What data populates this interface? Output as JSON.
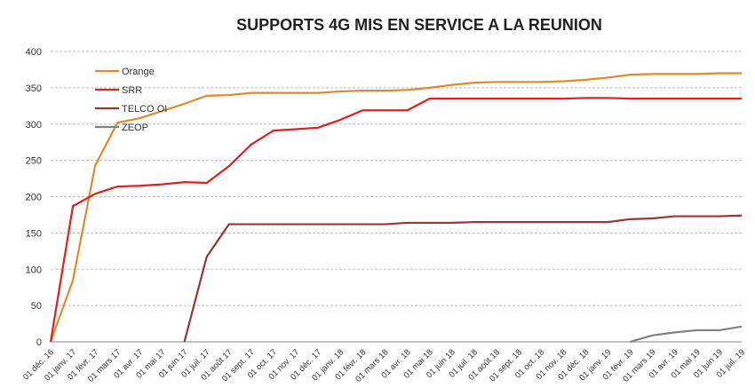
{
  "chart_data": {
    "type": "line",
    "title": "SUPPORTS 4G MIS EN SERVICE  A LA REUNION",
    "categories": [
      "01 déc. 16",
      "01 janv. 17",
      "01 févr. 17",
      "01 mars 17",
      "01 avr. 17",
      "01 mai 17",
      "01 juin 17",
      "01 juil. 17",
      "01 août 17",
      "01 sept. 17",
      "01 oct. 17",
      "01 nov. 17",
      "01 déc. 17",
      "01 janv. 18",
      "01 févr. 18",
      "01 mars 18",
      "01 avr. 18",
      "01 mai 18",
      "01 juin 18",
      "01 juil. 18",
      "01 août 18",
      "01 sept. 18",
      "01 oct. 18",
      "01 nov. 18",
      "01 déc. 18",
      "01 janv. 19",
      "01 févr. 19",
      "01 mars 19",
      "01 avr. 19",
      "01 mai 19",
      "01 juin 19",
      "01 juil. 19"
    ],
    "series": [
      {
        "name": "Orange",
        "color": "#e08a2c",
        "values": [
          0,
          85,
          243,
          302,
          308,
          318,
          328,
          339,
          340,
          343,
          343,
          343,
          343,
          345,
          346,
          346,
          347,
          350,
          354,
          357,
          358,
          358,
          358,
          359,
          361,
          364,
          368,
          369,
          369,
          369,
          370,
          370
        ]
      },
      {
        "name": "SRR",
        "color": "#e0201f",
        "values": [
          0,
          187,
          204,
          214,
          215,
          217,
          220,
          219,
          242,
          272,
          291,
          293,
          295,
          306,
          319,
          319,
          319,
          335,
          335,
          335,
          335,
          335,
          335,
          335,
          336,
          336,
          335,
          335,
          335,
          335,
          335,
          335
        ]
      },
      {
        "name": "TELCO OI",
        "color": "#953735",
        "values": [
          null,
          null,
          null,
          null,
          null,
          null,
          0,
          117,
          162,
          162,
          162,
          162,
          162,
          162,
          162,
          162,
          164,
          164,
          164,
          165,
          165,
          165,
          165,
          165,
          165,
          165,
          169,
          170,
          173,
          173,
          173,
          174
        ]
      },
      {
        "name": "ZEOP",
        "color": "#808080",
        "values": [
          null,
          null,
          null,
          null,
          null,
          null,
          null,
          null,
          null,
          null,
          null,
          null,
          null,
          null,
          null,
          null,
          null,
          null,
          null,
          null,
          null,
          null,
          null,
          null,
          null,
          null,
          0,
          9,
          13,
          16,
          16,
          21
        ]
      }
    ],
    "ylim": [
      0,
      400
    ],
    "yticks": [
      0,
      50,
      100,
      150,
      200,
      250,
      300,
      350,
      400
    ],
    "grid": true,
    "legend": "top-left"
  }
}
